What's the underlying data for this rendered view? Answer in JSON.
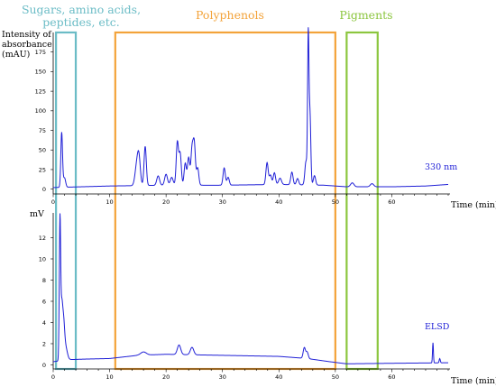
{
  "colors": {
    "trace": "#1f1fd6",
    "axis": "#000000",
    "sugars": "#6bbcc6",
    "polyphenols": "#f3a33a",
    "pigments": "#8cc63f"
  },
  "regions": [
    {
      "label_lines": [
        "Sugars, amino acids,",
        "peptides, etc."
      ],
      "x_start": 0.5,
      "x_end": 4.0
    },
    {
      "label_lines": [
        "Polyphenols"
      ],
      "x_start": 11.0,
      "x_end": 50.0
    },
    {
      "label_lines": [
        "Pigments"
      ],
      "x_start": 52.0,
      "x_end": 57.5
    }
  ],
  "chart_data": [
    {
      "type": "line",
      "name": "330 nm",
      "ylabel_lines": [
        "Intensity of",
        "absorbance",
        "(mAU)"
      ],
      "xlabel": "Time (min)",
      "xlim": [
        0,
        70
      ],
      "ylim": [
        -5,
        200
      ],
      "xticks": [
        0,
        10,
        20,
        30,
        40,
        50,
        60
      ],
      "yticks": [
        0,
        25,
        50,
        75,
        100,
        125,
        150,
        175
      ],
      "baseline": [
        [
          0,
          2
        ],
        [
          5,
          3
        ],
        [
          10,
          4
        ],
        [
          20,
          5
        ],
        [
          30,
          5
        ],
        [
          40,
          6
        ],
        [
          48,
          5
        ],
        [
          52,
          3
        ],
        [
          60,
          3
        ],
        [
          66,
          4
        ],
        [
          70,
          6
        ]
      ],
      "peaks": [
        {
          "t": 1.5,
          "h": 70,
          "w": 0.15
        },
        {
          "t": 2.0,
          "h": 12,
          "w": 0.2
        },
        {
          "t": 14.8,
          "h": 25,
          "w": 0.3
        },
        {
          "t": 15.2,
          "h": 32,
          "w": 0.25
        },
        {
          "t": 16.3,
          "h": 50,
          "w": 0.2
        },
        {
          "t": 18.6,
          "h": 12,
          "w": 0.25
        },
        {
          "t": 20.0,
          "h": 14,
          "w": 0.25
        },
        {
          "t": 21.0,
          "h": 10,
          "w": 0.25
        },
        {
          "t": 22.0,
          "h": 55,
          "w": 0.2
        },
        {
          "t": 22.5,
          "h": 40,
          "w": 0.2
        },
        {
          "t": 23.4,
          "h": 28,
          "w": 0.2
        },
        {
          "t": 24.0,
          "h": 35,
          "w": 0.2
        },
        {
          "t": 24.6,
          "h": 45,
          "w": 0.2
        },
        {
          "t": 25.0,
          "h": 52,
          "w": 0.2
        },
        {
          "t": 25.6,
          "h": 22,
          "w": 0.2
        },
        {
          "t": 30.3,
          "h": 22,
          "w": 0.2
        },
        {
          "t": 31.0,
          "h": 10,
          "w": 0.2
        },
        {
          "t": 37.9,
          "h": 28,
          "w": 0.2
        },
        {
          "t": 38.5,
          "h": 12,
          "w": 0.2
        },
        {
          "t": 39.2,
          "h": 15,
          "w": 0.2
        },
        {
          "t": 40.2,
          "h": 8,
          "w": 0.25
        },
        {
          "t": 42.3,
          "h": 16,
          "w": 0.2
        },
        {
          "t": 43.3,
          "h": 8,
          "w": 0.2
        },
        {
          "t": 44.8,
          "h": 30,
          "w": 0.2
        },
        {
          "t": 45.2,
          "h": 185,
          "w": 0.12
        },
        {
          "t": 45.5,
          "h": 90,
          "w": 0.15
        },
        {
          "t": 46.3,
          "h": 12,
          "w": 0.2
        },
        {
          "t": 53.0,
          "h": 5,
          "w": 0.3
        },
        {
          "t": 56.5,
          "h": 4,
          "w": 0.3
        }
      ]
    },
    {
      "type": "line",
      "name": "ELSD",
      "ylabel_lines": [
        "mV"
      ],
      "xlabel": "Time (min)",
      "xlim": [
        0,
        70
      ],
      "ylim": [
        -0.3,
        14
      ],
      "xticks": [
        0,
        10,
        20,
        30,
        40,
        50,
        60
      ],
      "yticks": [
        0,
        2,
        4,
        6,
        8,
        10,
        12
      ],
      "baseline": [
        [
          0,
          0.3
        ],
        [
          3,
          0.5
        ],
        [
          6,
          0.55
        ],
        [
          10,
          0.6
        ],
        [
          15,
          0.9
        ],
        [
          20,
          1.0
        ],
        [
          25,
          0.95
        ],
        [
          30,
          0.9
        ],
        [
          40,
          0.8
        ],
        [
          45,
          0.6
        ],
        [
          49,
          0.3
        ],
        [
          52,
          0.1
        ],
        [
          60,
          0.15
        ],
        [
          70,
          0.2
        ]
      ],
      "peaks": [
        {
          "t": 1.2,
          "h": 13.3,
          "w": 0.12
        },
        {
          "t": 1.5,
          "h": 4.2,
          "w": 0.15
        },
        {
          "t": 1.8,
          "h": 3.5,
          "w": 0.2
        },
        {
          "t": 2.2,
          "h": 1.2,
          "w": 0.3
        },
        {
          "t": 16.0,
          "h": 0.3,
          "w": 0.5
        },
        {
          "t": 22.3,
          "h": 0.9,
          "w": 0.3
        },
        {
          "t": 24.6,
          "h": 0.7,
          "w": 0.3
        },
        {
          "t": 44.5,
          "h": 1.0,
          "w": 0.2
        },
        {
          "t": 45.0,
          "h": 0.6,
          "w": 0.2
        },
        {
          "t": 67.3,
          "h": 1.9,
          "w": 0.08
        },
        {
          "t": 68.5,
          "h": 0.4,
          "w": 0.1
        }
      ]
    }
  ]
}
